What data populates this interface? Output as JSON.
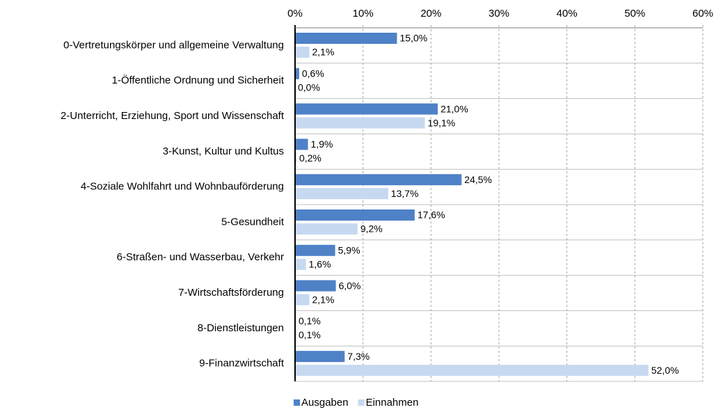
{
  "chart_data": {
    "type": "barh",
    "categories": [
      "0-Vertretungskörper und allgemeine Verwaltung",
      "1-Öffentliche Ordnung und Sicherheit",
      "2-Unterricht, Erziehung, Sport und Wissenschaft",
      "3-Kunst, Kultur und Kultus",
      "4-Soziale Wohlfahrt und Wohnbauförderung",
      "5-Gesundheit",
      "6-Straßen- und Wasserbau, Verkehr",
      "7-Wirtschaftsförderung",
      "8-Dienstleistungen",
      "9-Finanzwirtschaft"
    ],
    "series": [
      {
        "name": "Ausgaben",
        "color": "#4f81c7",
        "values": [
          15.0,
          0.6,
          21.0,
          1.9,
          24.5,
          17.6,
          5.9,
          6.0,
          0.1,
          7.3
        ],
        "value_labels": [
          "15,0%",
          "0,6%",
          "21,0%",
          "1,9%",
          "24,5%",
          "17,6%",
          "5,9%",
          "6,0%",
          "0,1%",
          "7,3%"
        ]
      },
      {
        "name": "Einnahmen",
        "color": "#c6d9f1",
        "values": [
          2.1,
          0.0,
          19.1,
          0.2,
          13.7,
          9.2,
          1.6,
          2.1,
          0.1,
          52.0
        ],
        "value_labels": [
          "2,1%",
          "0,0%",
          "19,1%",
          "0,2%",
          "13,7%",
          "9,2%",
          "1,6%",
          "2,1%",
          "0,1%",
          "52,0%"
        ]
      }
    ],
    "xlim": [
      0,
      60
    ],
    "xticks": [
      {
        "value": 0,
        "label": "0%"
      },
      {
        "value": 10,
        "label": "10%"
      },
      {
        "value": 20,
        "label": "20%"
      },
      {
        "value": 30,
        "label": "30%"
      },
      {
        "value": 40,
        "label": "40%"
      },
      {
        "value": 50,
        "label": "50%"
      },
      {
        "value": 60,
        "label": "60%"
      }
    ],
    "grid": true,
    "legend": "bottom"
  }
}
